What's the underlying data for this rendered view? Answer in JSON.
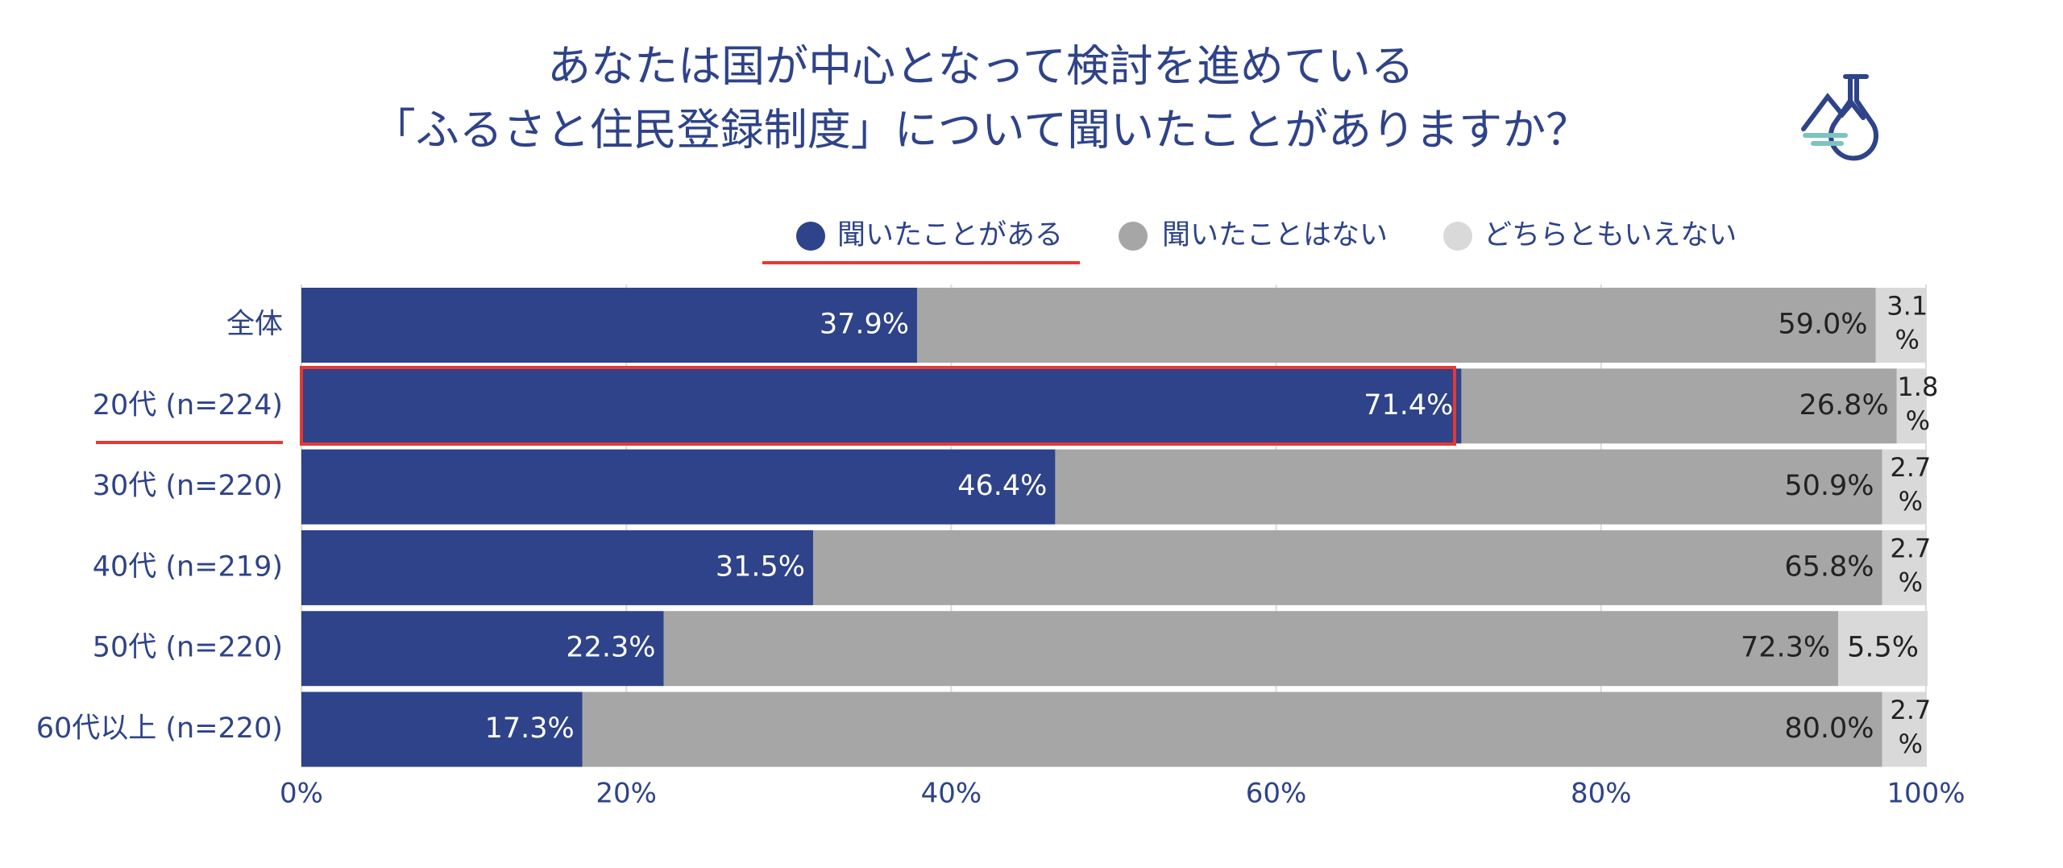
{
  "chart_data": {
    "type": "stacked-bar-horizontal",
    "title": "あなたは国が中心となって検討を進めている",
    "subtitle": "「ふるさと住民登録制度」について聞いたことがありますか？",
    "categories": [
      "全体",
      "20代 (n=224)",
      "30代 (n=220)",
      "40代 (n=219)",
      "50代 (n=220)",
      "60代以上 (n=220)"
    ],
    "series": [
      {
        "name": "聞いたことがある",
        "color": "#2e4389",
        "values": [
          37.9,
          71.4,
          46.4,
          31.5,
          22.3,
          17.3
        ],
        "value_labels": [
          "37.9%",
          "71.4%",
          "46.4%",
          "31.5%",
          "22.3%",
          "17.3%"
        ]
      },
      {
        "name": "聞いたことはない",
        "color": "#a6a6a6",
        "values": [
          59.0,
          26.8,
          50.9,
          65.8,
          72.3,
          80.0
        ],
        "value_labels": [
          "59.0%",
          "26.8%",
          "50.9%",
          "65.8%",
          "72.3%",
          "80.0%"
        ]
      },
      {
        "name": "どちらともいえない",
        "color": "#d9d9d9",
        "values": [
          3.1,
          1.8,
          2.7,
          2.7,
          5.5,
          2.7
        ],
        "value_labels": [
          "3.1%",
          "1.8%",
          "2.7%",
          "2.7%",
          "5.5%",
          "2.7%"
        ]
      }
    ],
    "xlim": [
      0,
      100
    ],
    "xticks": [
      {
        "value": 0,
        "label": "0%"
      },
      {
        "value": 20,
        "label": "20%"
      },
      {
        "value": 40,
        "label": "40%"
      },
      {
        "value": 60,
        "label": "60%"
      },
      {
        "value": 80,
        "label": "80%"
      },
      {
        "value": 100,
        "label": "100%"
      }
    ],
    "grid": true
  }
}
